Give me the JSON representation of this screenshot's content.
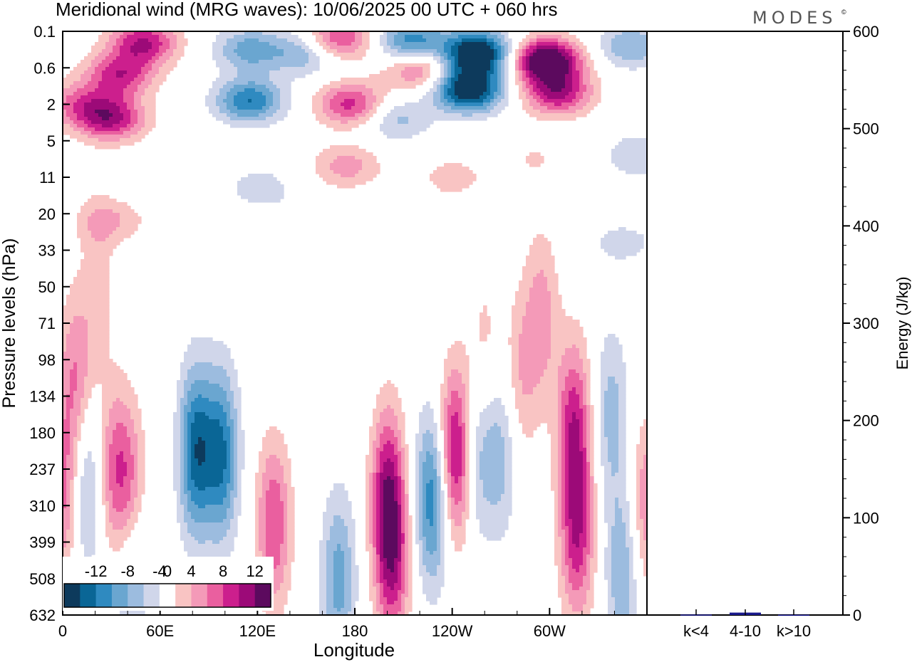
{
  "title": "Meridional wind (MRG waves):  10/06/2025  00 UTC  + 060 hrs",
  "brand": "MODES",
  "brand_mark": "©",
  "chart_data": [
    {
      "type": "heatmap",
      "title": "Meridional wind (MRG waves):  10/06/2025  00 UTC  + 060 hrs",
      "xlabel": "Longitude",
      "ylabel": "Pressure levels (hPa)",
      "x_ticks": [
        "0",
        "60E",
        "120E",
        "180",
        "120W",
        "60W"
      ],
      "y_ticks": [
        "0.1",
        "0.6",
        "2",
        "5",
        "11",
        "20",
        "33",
        "50",
        "71",
        "98",
        "134",
        "180",
        "237",
        "310",
        "399",
        "508",
        "632"
      ],
      "colorbar": {
        "labels": [
          "-12",
          "-8",
          "-4",
          "0",
          "4",
          "8",
          "12"
        ],
        "levels": [
          -14,
          -12,
          -10,
          -8,
          -6,
          -4,
          -2,
          2,
          4,
          6,
          8,
          10,
          12,
          14
        ],
        "colors": [
          "#0d3a5c",
          "#0a6696",
          "#2f8ac0",
          "#6aa6d0",
          "#9cbcdf",
          "#d0d6ea",
          "#ffffff",
          "#f9c4c3",
          "#f49ab8",
          "#ea5f9f",
          "#cc1f8d",
          "#9c0a78",
          "#5c0a5e"
        ]
      },
      "blobs": [
        {
          "lon": 0,
          "lev": 12.6,
          "v": 7
        },
        {
          "lon": 8,
          "lev": 9.5,
          "v": 6
        },
        {
          "lon": 15,
          "lev": 12.5,
          "v": -6
        },
        {
          "lon": 30,
          "lev": 12.0,
          "v": 5
        },
        {
          "lon": 40,
          "lev": 12.5,
          "v": 7
        },
        {
          "lon": 42,
          "lev": 14.8,
          "v": -5
        },
        {
          "lon": 82,
          "lev": 11.5,
          "v": -11
        },
        {
          "lon": 98,
          "lev": 11.6,
          "v": -10
        },
        {
          "lon": 130,
          "lev": 13.5,
          "v": 8
        },
        {
          "lon": 170,
          "lev": 15.0,
          "v": -7
        },
        {
          "lon": 180,
          "lev": 8.5,
          "v": -2
        },
        {
          "lon": 200,
          "lev": 12.5,
          "v": 9
        },
        {
          "lon": 203,
          "lev": 14.5,
          "v": 9
        },
        {
          "lon": 228,
          "lev": 12.8,
          "v": -10
        },
        {
          "lon": 242,
          "lev": 11.6,
          "v": 12
        },
        {
          "lon": 255,
          "lev": 11.6,
          "v": -5
        },
        {
          "lon": 270,
          "lev": 11.5,
          "v": -5
        },
        {
          "lon": 295,
          "lev": 7.8,
          "v": 5
        },
        {
          "lon": 282,
          "lev": 9.5,
          "v": 4
        },
        {
          "lon": 315,
          "lev": 10.8,
          "v": 9
        },
        {
          "lon": 317,
          "lev": 13.8,
          "v": 9
        },
        {
          "lon": 338,
          "lev": 10.5,
          "v": -5
        },
        {
          "lon": 345,
          "lev": 14.8,
          "v": -6
        },
        {
          "lon": 360,
          "lev": 13.0,
          "v": 6
        },
        {
          "lon": 35,
          "lev": 1.2,
          "v": 9
        },
        {
          "lon": 10,
          "lev": 2.0,
          "v": 6
        },
        {
          "lon": 30,
          "lev": 2.4,
          "v": 10
        },
        {
          "lon": 50,
          "lev": 0.3,
          "v": 10
        },
        {
          "lon": 115,
          "lev": 0.5,
          "v": -7
        },
        {
          "lon": 115,
          "lev": 1.9,
          "v": -10
        },
        {
          "lon": 150,
          "lev": 0.6,
          "v": -6
        },
        {
          "lon": 170,
          "lev": 0.2,
          "v": 9
        },
        {
          "lon": 178,
          "lev": 2.0,
          "v": 9
        },
        {
          "lon": 215,
          "lev": 0.3,
          "v": -10
        },
        {
          "lon": 220,
          "lev": 1.0,
          "v": 8
        },
        {
          "lon": 205,
          "lev": 2.4,
          "v": -5
        },
        {
          "lon": 255,
          "lev": 0.6,
          "v": -16
        },
        {
          "lon": 250,
          "lev": 1.6,
          "v": -15
        },
        {
          "lon": 298,
          "lev": 0.8,
          "v": 16
        },
        {
          "lon": 305,
          "lev": 1.7,
          "v": 10
        },
        {
          "lon": 350,
          "lev": 0.4,
          "v": -6
        },
        {
          "lon": 355,
          "lev": 3.4,
          "v": -4
        },
        {
          "lon": 120,
          "lev": 4.3,
          "v": -3
        },
        {
          "lon": 175,
          "lev": 3.7,
          "v": 5
        },
        {
          "lon": 240,
          "lev": 4.0,
          "v": 3
        },
        {
          "lon": 290,
          "lev": 3.5,
          "v": 2
        },
        {
          "lon": 30,
          "lev": 5.2,
          "v": 4
        },
        {
          "lon": 135,
          "lev": 7.2,
          "v": -2
        },
        {
          "lon": 345,
          "lev": 5.8,
          "v": -3
        },
        {
          "lon": 22,
          "lev": 6.8,
          "v": 3
        },
        {
          "lon": 260,
          "lev": 8.8,
          "v": 3
        }
      ],
      "energy_bars": {
        "categories": [
          "k<4",
          "4-10",
          "k>10"
        ],
        "values": [
          0.5,
          2.5,
          0.3
        ],
        "ylabel": "Energy (J/kg)",
        "ylim": [
          0,
          600
        ],
        "y_ticks": [
          "0",
          "100",
          "200",
          "300",
          "400",
          "500",
          "600"
        ],
        "color": "#1a1a8c"
      }
    }
  ]
}
